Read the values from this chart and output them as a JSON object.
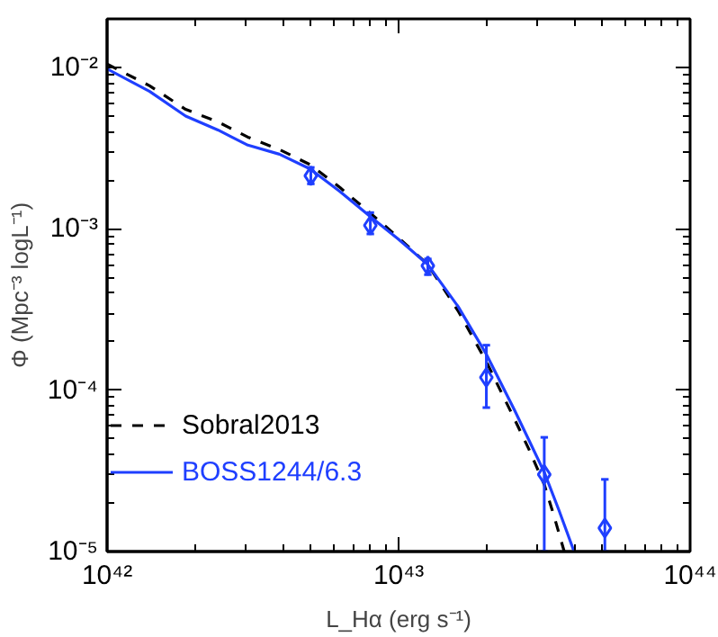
{
  "chart_data": {
    "type": "line",
    "xlabel": "L_Hα (erg s⁻¹)",
    "ylabel": "Φ (Mpc⁻³ logL⁻¹)",
    "log": "xy",
    "xlim": [
      1e+42,
      1e+44
    ],
    "ylim": [
      1e-05,
      0.02
    ],
    "xticks": [
      {
        "value": 1e+42,
        "label": "10⁴²"
      },
      {
        "value": 1e+43,
        "label": "10⁴³"
      },
      {
        "value": 1e+44,
        "label": "10⁴⁴"
      }
    ],
    "yticks": [
      {
        "value": 1e-05,
        "label": "10⁻⁵"
      },
      {
        "value": 0.0001,
        "label": "10⁻⁴"
      },
      {
        "value": 0.001,
        "label": "10⁻³"
      },
      {
        "value": 0.01,
        "label": "10⁻²"
      }
    ],
    "legend": "bottom left",
    "series": [
      {
        "name": "Sobral2013",
        "color": "#000000",
        "line_style": "dashed",
        "x": [
          1e+42,
          1.4e+42,
          1.86e+42,
          2.4e+42,
          3.04e+42,
          3.9e+42,
          4.97e+42,
          6.3e+42,
          8e+42,
          1e+43,
          1.26e+43,
          1.6e+43,
          2e+43,
          2.5e+43,
          2.8e+43,
          3.16e+43,
          3.4e+43,
          3.7e+43
        ],
        "values": [
          0.0105,
          0.0077,
          0.0055,
          0.0046,
          0.0037,
          0.0031,
          0.0025,
          0.0018,
          0.00125,
          0.00088,
          0.0006,
          0.00031,
          0.00015,
          6.6e-05,
          4.3e-05,
          2.6e-05,
          1.7e-05,
          1e-05
        ]
      },
      {
        "name": "BOSS1244/6.3",
        "color": "#1f3fff",
        "line_style": "solid",
        "x": [
          1e+42,
          1.4e+42,
          1.86e+42,
          2.4e+42,
          3.04e+42,
          3.9e+42,
          4.97e+42,
          6.3e+42,
          8e+42,
          1e+43,
          1.26e+43,
          1.6e+43,
          2e+43,
          2.5e+43,
          2.8e+43,
          3.16e+43,
          3.55e+43,
          4e+43
        ],
        "values": [
          0.0098,
          0.0071,
          0.005,
          0.0041,
          0.0033,
          0.0029,
          0.00235,
          0.0017,
          0.00119,
          0.00086,
          0.0006,
          0.00033,
          0.000167,
          7.5e-05,
          4.9e-05,
          3.1e-05,
          1.8e-05,
          1e-05
        ]
      },
      {
        "type": "scatter",
        "marker": "diamond",
        "color": "#1f3fff",
        "x": [
          5e+42,
          8e+42,
          1.26e+43,
          2e+43,
          3.16e+43,
          5.1e+43
        ],
        "values": [
          0.00213,
          0.00105,
          0.00059,
          0.00012,
          3e-05,
          1.4e-05
        ],
        "errors": [
          [
            0.0019,
            0.0024
          ],
          [
            0.00093,
            0.00126
          ],
          [
            0.00052,
            0.00065
          ],
          [
            7.8e-05,
            0.00019
          ],
          [
            1e-05,
            5.1e-05
          ],
          [
            1e-05,
            2.8e-05
          ]
        ]
      }
    ]
  }
}
